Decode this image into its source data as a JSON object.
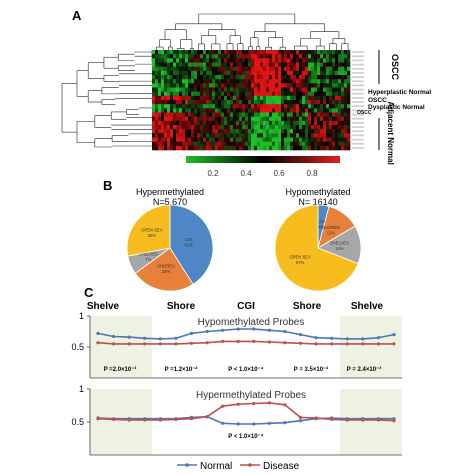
{
  "colors": {
    "green": "#1fbf2a",
    "black": "#000000",
    "red": "#e02020",
    "blue_cgi": "#4f86c6",
    "orange_shores": "#e8803a",
    "gray_shelves": "#a7a7a7",
    "yellow_opensea": "#f7bd1f",
    "line_normal": "#4a78b8",
    "line_disease": "#c0504d",
    "shelve_bg": "#eef2e2"
  },
  "panel_a": {
    "label": "A",
    "row_labels": [
      "OSCC",
      "Hyperplastic Normal",
      "OSCC",
      "Dysplastic Normal",
      "OSCC",
      "Adjacent Normal"
    ],
    "colorbar_ticks": [
      "0.2",
      "0.4",
      "0.6",
      "0.8"
    ]
  },
  "chart_data": [
    {
      "type": "pie",
      "panel": "B",
      "title": "Hypermethylated",
      "subtitle": "N=5,670",
      "slices": [
        {
          "label": "CGI",
          "value": 41,
          "text": "CGI\n41%"
        },
        {
          "label": "SHORES",
          "value": 24,
          "text": "SHORES\n24%"
        },
        {
          "label": "SHELVES",
          "value": 7,
          "text": "SHELVES\n7%"
        },
        {
          "label": "OPEN SEA",
          "value": 28,
          "text": "OPEN SEA\n28%"
        }
      ]
    },
    {
      "type": "pie",
      "panel": "B",
      "title": "Hypomethylated",
      "subtitle": "N= 16140",
      "slices": [
        {
          "label": "CGI",
          "value": 4,
          "text": "CGI\n4%"
        },
        {
          "label": "SHORES",
          "value": 12,
          "text": "SHORES\n12%"
        },
        {
          "label": "SHELVES",
          "value": 14,
          "text": "SHELVES\n14%"
        },
        {
          "label": "OPEN SEA",
          "value": 67,
          "text": "OPEN SEA\n67%"
        }
      ]
    },
    {
      "type": "line",
      "panel": "C",
      "title": "Hypomethylated Probes",
      "region_labels": [
        "Shelve",
        "Shore",
        "CGI",
        "Shore",
        "Shelve"
      ],
      "ylim": [
        0,
        1
      ],
      "yticks": [
        "0.5",
        "1"
      ],
      "x": [
        1,
        2,
        3,
        4,
        5,
        6,
        7,
        8,
        9,
        10,
        11,
        12,
        13,
        14,
        15,
        16,
        17,
        18,
        19,
        20
      ],
      "series": [
        {
          "name": "Normal",
          "values": [
            0.72,
            0.67,
            0.66,
            0.64,
            0.63,
            0.64,
            0.72,
            0.75,
            0.77,
            0.79,
            0.79,
            0.77,
            0.75,
            0.7,
            0.65,
            0.64,
            0.63,
            0.63,
            0.65,
            0.7
          ]
        },
        {
          "name": "Disease",
          "values": [
            0.57,
            0.55,
            0.55,
            0.55,
            0.55,
            0.55,
            0.56,
            0.57,
            0.59,
            0.59,
            0.59,
            0.58,
            0.57,
            0.56,
            0.55,
            0.55,
            0.55,
            0.55,
            0.55,
            0.55
          ]
        }
      ],
      "pvalues": [
        "P =2.0×10⁻³",
        "P =1.2×10⁻²",
        "P < 1.0×10⁻⁴",
        "P = 3.5×10⁻²",
        "P = 2.4×10⁻³"
      ]
    },
    {
      "type": "line",
      "panel": "C",
      "title": "Hypermethylated Probes",
      "ylim": [
        0,
        1
      ],
      "yticks": [
        "0.5",
        "1"
      ],
      "x": [
        1,
        2,
        3,
        4,
        5,
        6,
        7,
        8,
        9,
        10,
        11,
        12,
        13,
        14,
        15,
        16,
        17,
        18,
        19,
        20
      ],
      "series": [
        {
          "name": "Normal",
          "values": [
            0.56,
            0.55,
            0.55,
            0.55,
            0.55,
            0.55,
            0.57,
            0.58,
            0.48,
            0.47,
            0.47,
            0.48,
            0.49,
            0.52,
            0.55,
            0.56,
            0.55,
            0.55,
            0.55,
            0.55
          ]
        },
        {
          "name": "Disease",
          "values": [
            0.55,
            0.54,
            0.53,
            0.53,
            0.53,
            0.54,
            0.55,
            0.58,
            0.74,
            0.77,
            0.78,
            0.79,
            0.76,
            0.57,
            0.56,
            0.54,
            0.53,
            0.53,
            0.53,
            0.52
          ]
        }
      ],
      "pvalues": [
        "P < 1.0×10⁻⁴"
      ],
      "legend": [
        "Normal",
        "Disease"
      ]
    }
  ],
  "panel_b_label": "B",
  "panel_c_label": "C"
}
